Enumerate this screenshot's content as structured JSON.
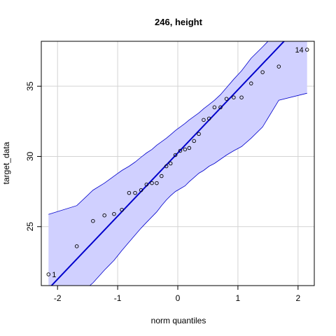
{
  "chart_data": {
    "type": "scatter",
    "title": "246, height",
    "xlabel": "norm quantiles",
    "ylabel": "target_data",
    "xlim": [
      -2.27,
      2.27
    ],
    "ylim": [
      20.8,
      38.2
    ],
    "xticks": [
      -2,
      -1,
      0,
      1,
      2
    ],
    "yticks": [
      25,
      30,
      35
    ],
    "grid": true,
    "colors": {
      "band_fill": "#d0d0ff",
      "band_edge": "#0000cc",
      "line": "#0000cc",
      "grid": "#d3d3d3",
      "points": "#000000"
    },
    "points": {
      "x": [
        -2.15,
        -1.68,
        -1.41,
        -1.22,
        -1.06,
        -0.93,
        -0.81,
        -0.71,
        -0.61,
        -0.52,
        -0.43,
        -0.35,
        -0.27,
        -0.19,
        -0.12,
        -0.04,
        0.04,
        0.12,
        0.19,
        0.27,
        0.35,
        0.43,
        0.52,
        0.61,
        0.71,
        0.81,
        0.93,
        1.06,
        1.22,
        1.41,
        1.68,
        2.15
      ],
      "y": [
        21.6,
        23.6,
        25.4,
        25.8,
        25.9,
        26.2,
        27.4,
        27.4,
        27.6,
        28.0,
        28.1,
        28.1,
        28.6,
        29.3,
        29.5,
        30.1,
        30.4,
        30.5,
        30.6,
        31.1,
        31.6,
        32.6,
        32.7,
        33.5,
        33.5,
        34.1,
        34.2,
        34.2,
        35.2,
        36.0,
        36.4,
        37.6
      ]
    },
    "point_labels": [
      {
        "text": "1",
        "x": -2.15,
        "y": 21.6
      },
      {
        "text": "14",
        "x": 2.15,
        "y": 37.6
      }
    ],
    "reference_line": {
      "intercept": 30.25,
      "slope": 4.5
    },
    "confidence_band": {
      "x": [
        -2.15,
        -1.68,
        -1.41,
        -1.22,
        -1.06,
        -0.93,
        -0.81,
        -0.71,
        -0.61,
        -0.52,
        -0.43,
        -0.35,
        -0.27,
        -0.19,
        -0.12,
        -0.04,
        0.04,
        0.12,
        0.19,
        0.27,
        0.35,
        0.43,
        0.52,
        0.61,
        0.71,
        0.81,
        0.93,
        1.06,
        1.22,
        1.41,
        1.68,
        2.15
      ],
      "upper": [
        25.87,
        26.5,
        27.6,
        28.1,
        28.6,
        29.0,
        29.3,
        29.6,
        29.95,
        30.25,
        30.5,
        30.8,
        31.05,
        31.3,
        31.55,
        31.85,
        32.1,
        32.35,
        32.6,
        32.85,
        33.1,
        33.4,
        33.7,
        34.0,
        34.4,
        34.9,
        35.5,
        36.1,
        37.0,
        37.8,
        39.0,
        41.6
      ],
      "lower": [
        18.9,
        20.0,
        21.0,
        21.9,
        22.6,
        23.3,
        23.9,
        24.4,
        24.9,
        25.3,
        25.7,
        26.05,
        26.5,
        26.9,
        27.2,
        27.5,
        27.7,
        27.9,
        28.2,
        28.5,
        28.8,
        29.0,
        29.3,
        29.5,
        29.8,
        30.1,
        30.4,
        30.7,
        31.3,
        32.1,
        34.0,
        34.5
      ]
    }
  }
}
